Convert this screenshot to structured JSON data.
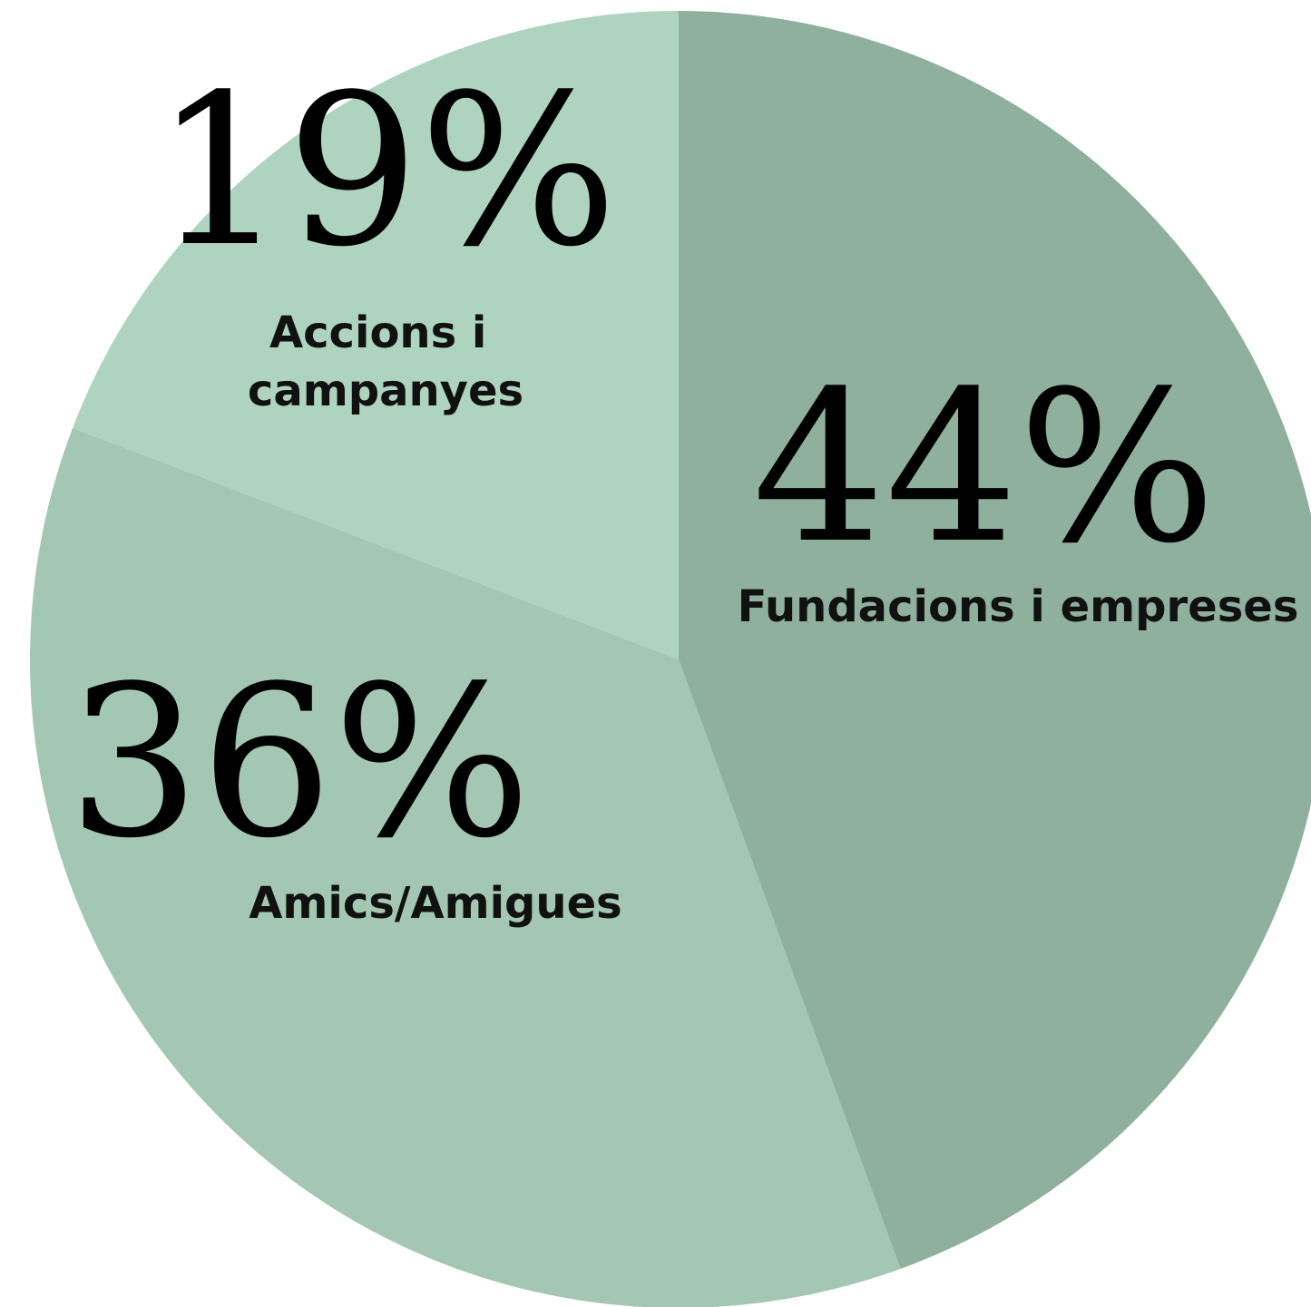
{
  "chart_data": {
    "type": "pie",
    "categories": [
      "Fundacions i empreses",
      "Amics/Amigues",
      "Accions i campanyes"
    ],
    "values": [
      44,
      36,
      19
    ],
    "value_labels": [
      "44%",
      "36%",
      "19%"
    ],
    "colors": [
      "#8fb09d",
      "#a3c7b3",
      "#aed4c0"
    ]
  }
}
